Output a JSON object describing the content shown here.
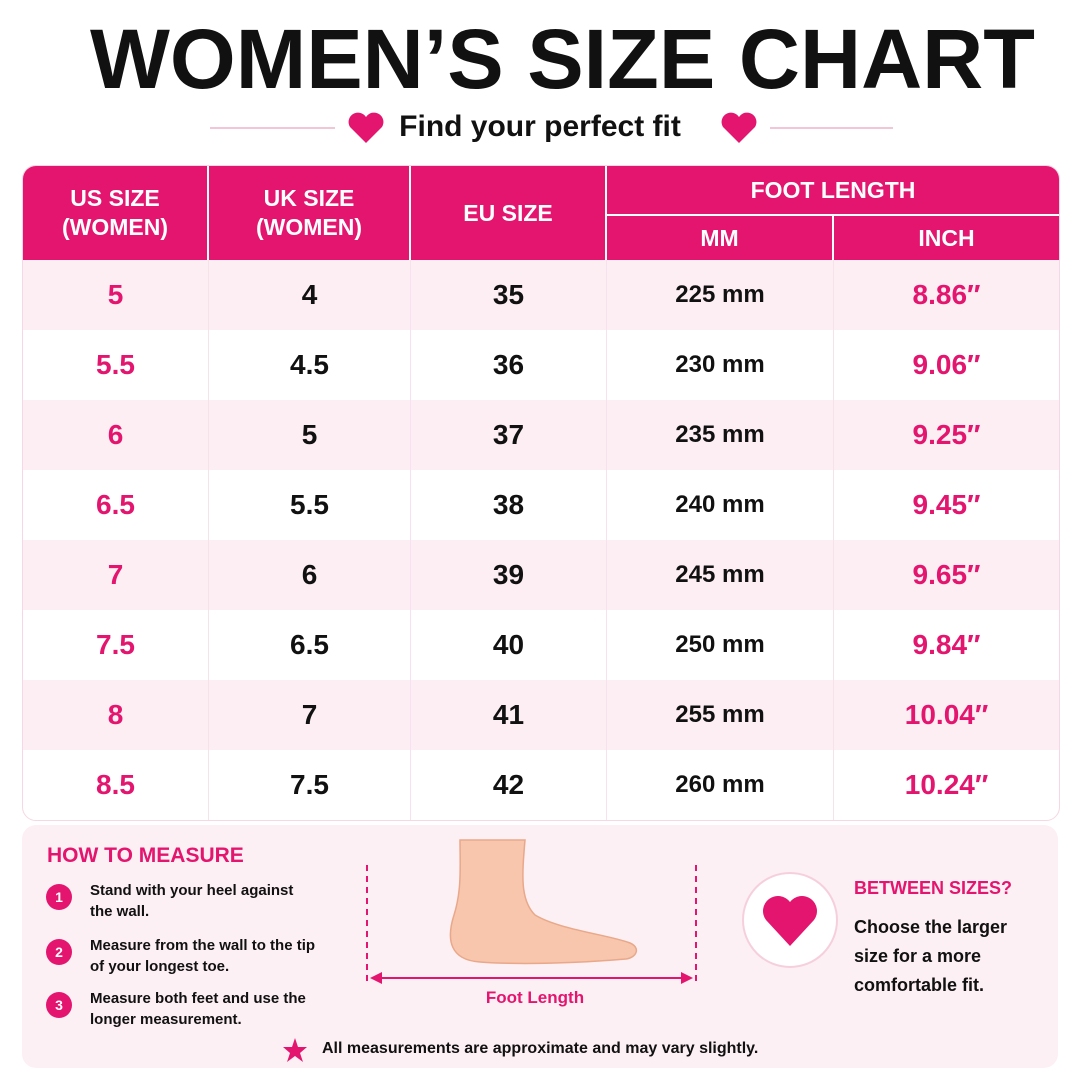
{
  "header": {
    "title": "WOMEN’S SIZE CHART",
    "subtitle": "Find your perfect fit"
  },
  "table": {
    "columns": [
      "US SIZE (WOMEN)",
      "UK SIZE (WOMEN)",
      "EU SIZE"
    ],
    "group": "FOOT LENGTH",
    "sub_columns": [
      "MM",
      "INCH"
    ],
    "rows": [
      [
        "5",
        "4",
        "35",
        "225 mm",
        "8.86″"
      ],
      [
        "5.5",
        "4.5",
        "36",
        "230 mm",
        "9.06″"
      ],
      [
        "6",
        "5",
        "37",
        "235 mm",
        "9.25″"
      ],
      [
        "6.5",
        "5.5",
        "38",
        "240 mm",
        "9.45″"
      ],
      [
        "7",
        "6",
        "39",
        "245 mm",
        "9.65″"
      ],
      [
        "7.5",
        "6.5",
        "40",
        "250 mm",
        "9.84″"
      ],
      [
        "8",
        "7",
        "41",
        "255 mm",
        "10.04″"
      ],
      [
        "8.5",
        "7.5",
        "42",
        "260 mm",
        "10.24″"
      ]
    ]
  },
  "how_to": {
    "title": "HOW TO MEASURE",
    "steps": [
      {
        "number": "1",
        "text": "Stand with your heel against the wall."
      },
      {
        "number": "2",
        "text": "Measure from the wall to the tip of your longest toe."
      },
      {
        "number": "3",
        "text": "Measure both feet and use the longer measurement."
      }
    ]
  },
  "diagram_label": "Foot Length",
  "between": {
    "title": "BETWEEN SIZES?",
    "text": "Choose the larger size for a more comfortable fit."
  },
  "footnote": "All measurements are approximate and may vary slightly."
}
